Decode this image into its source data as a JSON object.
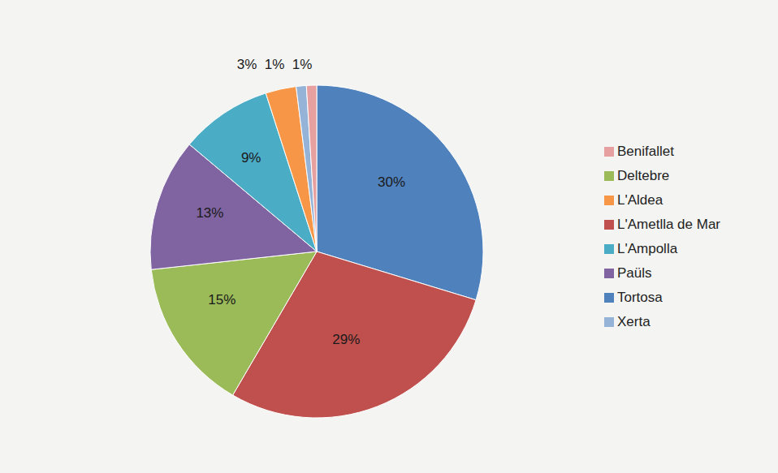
{
  "chart_data": {
    "type": "pie",
    "categories": [
      "Tortosa",
      "L'Ametlla de Mar",
      "Deltebre",
      "Paüls",
      "L'Ampolla",
      "L'Aldea",
      "Xerta",
      "Benifallet"
    ],
    "values": [
      30,
      29,
      15,
      13,
      9,
      3,
      1,
      1
    ],
    "value_labels": [
      "30%",
      "29%",
      "15%",
      "13%",
      "9%",
      "3%",
      "1%",
      "1%"
    ],
    "colors": [
      "#4f81bd",
      "#c0504d",
      "#9bbb59",
      "#8064a2",
      "#4bacc6",
      "#f79646",
      "#95b3d7",
      "#e6a0a0"
    ],
    "data_labels": true,
    "legend": "right"
  }
}
